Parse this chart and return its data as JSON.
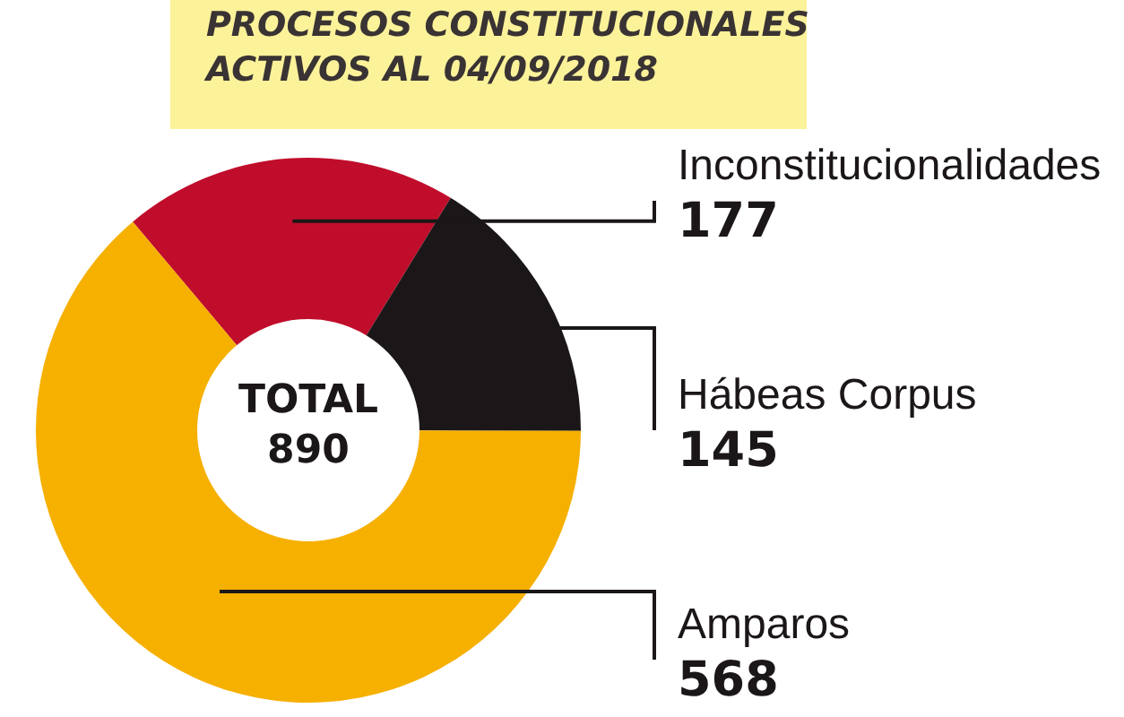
{
  "chart_data": {
    "type": "donut",
    "title": "PROCESOS CONSTITUCIONALES\nACTIVOS  AL 04/09/2018",
    "categories": [
      "Inconstitucionalidades",
      "Hábeas Corpus",
      "Amparos"
    ],
    "values": [
      177,
      145,
      568
    ],
    "colors": [
      "#c00d2b",
      "#1b1718",
      "#f6b000"
    ],
    "data_labels": true,
    "annotations": [
      "TOTAL\n890"
    ]
  }
}
